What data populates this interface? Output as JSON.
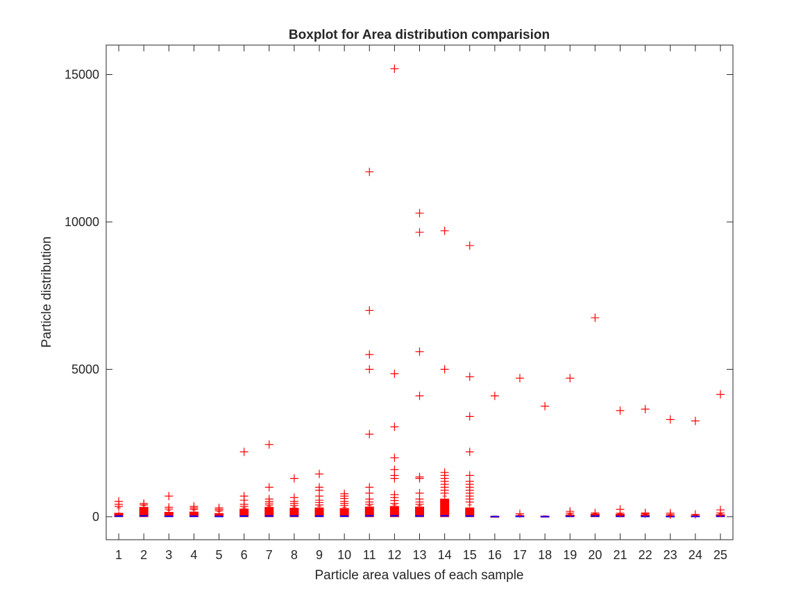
{
  "chart_data": {
    "type": "boxplot",
    "title": "Boxplot for Area distribution comparision",
    "xlabel": "Particle area values of each sample",
    "ylabel": "Particle distribution",
    "ylim": [
      -780,
      16000
    ],
    "yticks": [
      0,
      5000,
      10000,
      15000
    ],
    "categories": [
      "1",
      "2",
      "3",
      "4",
      "5",
      "6",
      "7",
      "8",
      "9",
      "10",
      "11",
      "12",
      "13",
      "14",
      "15",
      "16",
      "17",
      "18",
      "19",
      "20",
      "21",
      "22",
      "23",
      "24",
      "25"
    ],
    "colors": {
      "box": "#ff0000",
      "median": "#0000ff",
      "outlier": "#ff0000",
      "axis": "#262626"
    },
    "grid": false,
    "samples": [
      {
        "label": "1",
        "q1": 0,
        "median": 20,
        "q3": 120,
        "whisker_high": 300,
        "outliers": [
          350,
          420,
          520
        ]
      },
      {
        "label": "2",
        "q1": 0,
        "median": 30,
        "q3": 320,
        "whisker_high": 380,
        "outliers": [
          400,
          450
        ]
      },
      {
        "label": "3",
        "q1": 0,
        "median": 15,
        "q3": 150,
        "whisker_high": 220,
        "outliers": [
          260,
          320,
          700
        ]
      },
      {
        "label": "4",
        "q1": 0,
        "median": 15,
        "q3": 160,
        "whisker_high": 230,
        "outliers": [
          250,
          300,
          350
        ]
      },
      {
        "label": "5",
        "q1": 0,
        "median": 10,
        "q3": 110,
        "whisker_high": 180,
        "outliers": [
          200,
          250,
          300
        ]
      },
      {
        "label": "6",
        "q1": 0,
        "median": 20,
        "q3": 260,
        "whisker_high": 300,
        "outliers": [
          350,
          420,
          560,
          700,
          2200
        ]
      },
      {
        "label": "7",
        "q1": 0,
        "median": 25,
        "q3": 320,
        "whisker_high": 360,
        "outliers": [
          400,
          460,
          520,
          600,
          1000,
          2450
        ]
      },
      {
        "label": "8",
        "q1": 0,
        "median": 25,
        "q3": 290,
        "whisker_high": 330,
        "outliers": [
          380,
          450,
          520,
          650,
          1300
        ]
      },
      {
        "label": "9",
        "q1": 0,
        "median": 20,
        "q3": 300,
        "whisker_high": 350,
        "outliers": [
          400,
          480,
          560,
          700,
          900,
          1000,
          1450
        ]
      },
      {
        "label": "10",
        "q1": 0,
        "median": 20,
        "q3": 280,
        "whisker_high": 320,
        "outliers": [
          380,
          450,
          520,
          620,
          700,
          780
        ]
      },
      {
        "label": "11",
        "q1": 0,
        "median": 30,
        "q3": 330,
        "whisker_high": 380,
        "outliers": [
          420,
          500,
          600,
          800,
          1000,
          2800,
          5000,
          5500,
          7000,
          11700
        ]
      },
      {
        "label": "12",
        "q1": 0,
        "median": 30,
        "q3": 350,
        "whisker_high": 400,
        "outliers": [
          450,
          550,
          650,
          750,
          1300,
          1400,
          1600,
          2000,
          3050,
          4850,
          15200
        ]
      },
      {
        "label": "13",
        "q1": 0,
        "median": 25,
        "q3": 330,
        "whisker_high": 380,
        "outliers": [
          420,
          500,
          600,
          800,
          1300,
          1350,
          4100,
          5600,
          9650,
          10300
        ]
      },
      {
        "label": "14",
        "q1": 0,
        "median": 30,
        "q3": 600,
        "whisker_high": 700,
        "outliers": [
          800,
          900,
          1000,
          1100,
          1200,
          1300,
          1400,
          1500,
          5000,
          9700
        ]
      },
      {
        "label": "15",
        "q1": 0,
        "median": 25,
        "q3": 300,
        "whisker_high": 400,
        "outliers": [
          500,
          600,
          700,
          800,
          900,
          1000,
          1100,
          1200,
          1400,
          2200,
          3400,
          4750,
          9200
        ]
      },
      {
        "label": "16",
        "q1": 0,
        "median": 5,
        "q3": 15,
        "whisker_high": 25,
        "outliers": [
          4100
        ]
      },
      {
        "label": "17",
        "q1": 0,
        "median": 10,
        "q3": 40,
        "whisker_high": 60,
        "outliers": [
          100,
          4700
        ]
      },
      {
        "label": "18",
        "q1": 0,
        "median": 5,
        "q3": 20,
        "whisker_high": 30,
        "outliers": [
          3750
        ]
      },
      {
        "label": "19",
        "q1": 0,
        "median": 15,
        "q3": 60,
        "whisker_high": 90,
        "outliers": [
          120,
          180,
          4700
        ]
      },
      {
        "label": "20",
        "q1": 0,
        "median": 20,
        "q3": 90,
        "whisker_high": 110,
        "outliers": [
          130,
          6750
        ]
      },
      {
        "label": "21",
        "q1": 0,
        "median": 15,
        "q3": 80,
        "whisker_high": 100,
        "outliers": [
          120,
          250,
          3600
        ]
      },
      {
        "label": "22",
        "q1": 0,
        "median": 10,
        "q3": 60,
        "whisker_high": 80,
        "outliers": [
          100,
          130,
          3650
        ]
      },
      {
        "label": "23",
        "q1": 0,
        "median": 5,
        "q3": 30,
        "whisker_high": 50,
        "outliers": [
          70,
          120,
          3300
        ]
      },
      {
        "label": "24",
        "q1": 0,
        "median": 10,
        "q3": 40,
        "whisker_high": 60,
        "outliers": [
          80,
          3250
        ]
      },
      {
        "label": "25",
        "q1": 0,
        "median": 15,
        "q3": 70,
        "whisker_high": 100,
        "outliers": [
          130,
          230,
          4150
        ]
      }
    ]
  }
}
